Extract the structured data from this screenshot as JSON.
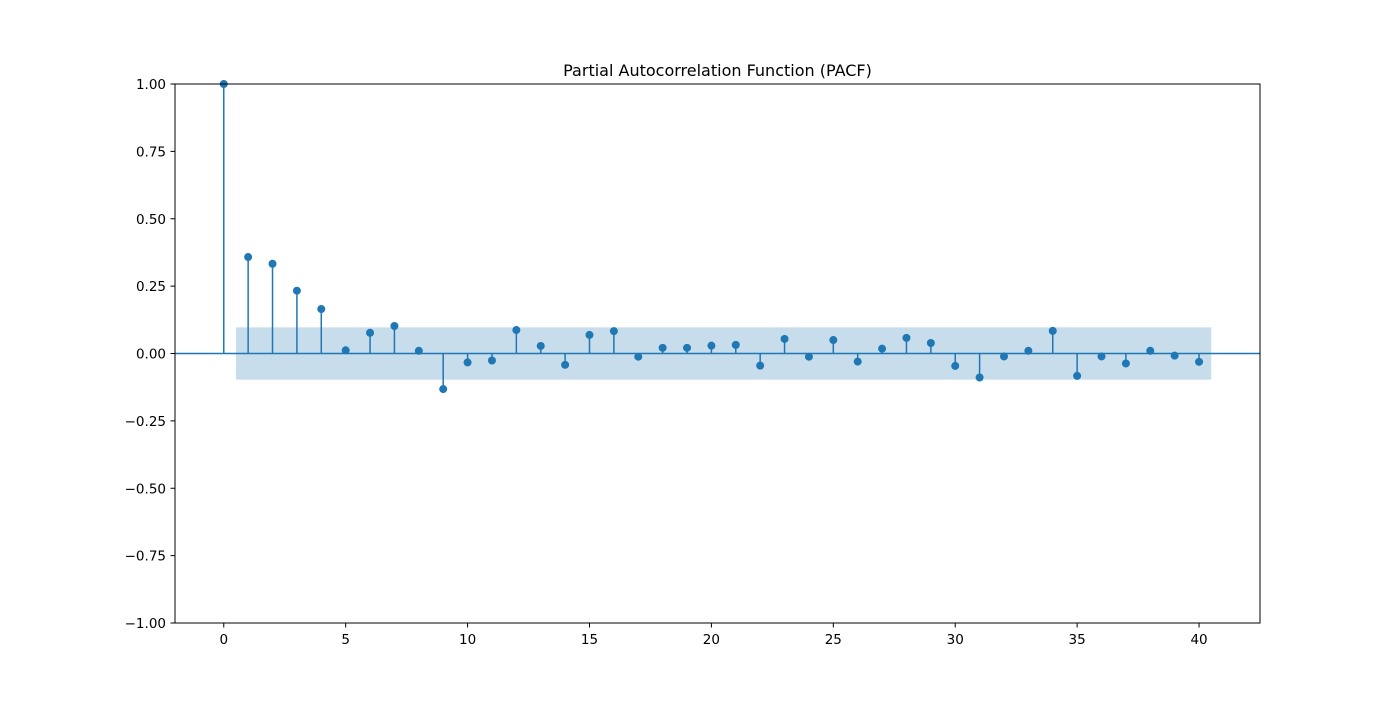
{
  "chart_data": {
    "type": "stem",
    "title": "Partial Autocorrelation Function (PACF)",
    "xlabel": "",
    "ylabel": "",
    "xlim": [
      -2,
      42.5
    ],
    "ylim": [
      -1.0,
      1.0
    ],
    "x_ticks": [
      0,
      5,
      10,
      15,
      20,
      25,
      30,
      35,
      40
    ],
    "y_ticks": [
      1.0,
      0.75,
      0.5,
      0.25,
      0.0,
      -0.25,
      -0.5,
      -0.75,
      -1.0
    ],
    "y_tick_labels": [
      "1.00",
      "0.75",
      "0.50",
      "0.25",
      "0.00",
      "−0.25",
      "−0.50",
      "−0.75",
      "−1.00"
    ],
    "confidence_interval": {
      "x_range": [
        0.5,
        40.5
      ],
      "lower": -0.097,
      "upper": 0.097
    },
    "grid": false,
    "colors": {
      "stem": "#1f77b4",
      "band": "#1f77b4",
      "axis": "#000000"
    },
    "lags": [
      0,
      1,
      2,
      3,
      4,
      5,
      6,
      7,
      8,
      9,
      10,
      11,
      12,
      13,
      14,
      15,
      16,
      17,
      18,
      19,
      20,
      21,
      22,
      23,
      24,
      25,
      26,
      27,
      28,
      29,
      30,
      31,
      32,
      33,
      34,
      35,
      36,
      37,
      38,
      39,
      40
    ],
    "values": [
      1.0,
      0.358,
      0.333,
      0.233,
      0.165,
      0.012,
      0.077,
      0.102,
      0.01,
      -0.132,
      -0.033,
      -0.026,
      0.087,
      0.028,
      -0.042,
      0.069,
      0.083,
      -0.012,
      0.021,
      0.021,
      0.029,
      0.032,
      -0.045,
      0.054,
      -0.012,
      0.05,
      -0.03,
      0.018,
      0.058,
      0.039,
      -0.046,
      -0.089,
      -0.011,
      0.01,
      0.084,
      -0.083,
      -0.011,
      -0.037,
      0.01,
      -0.008,
      -0.031
    ]
  }
}
